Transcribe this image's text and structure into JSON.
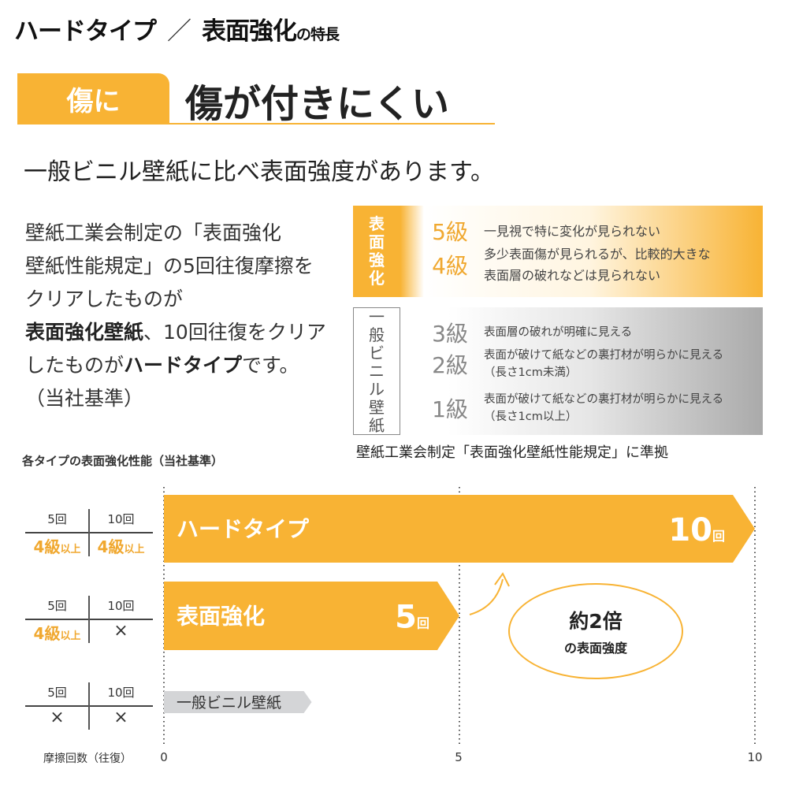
{
  "header": {
    "title_part1": "ハードタイプ",
    "separator": "／",
    "title_part2": "表面強化",
    "title_suffix": "の特長"
  },
  "feature": {
    "label": "傷に",
    "heading": "傷が付きにくい",
    "subtitle": "一般ビニル壁紙に比べ表面強度があります。"
  },
  "paragraph": {
    "lines": [
      "壁紙工業会制定の「表面強化",
      "壁紙性能規定」の5回往復摩擦を",
      "クリアしたものが"
    ],
    "bold1": "表面強化壁紙",
    "line4_rest": "、10回往復をクリア",
    "line5_pre": "したものが",
    "bold2": "ハードタイプ",
    "line5_post": "です。",
    "line6": "（当社基準）"
  },
  "grades": {
    "surface_label": "表面強化",
    "vinyl_label": "一般ビニル壁紙",
    "rows": [
      {
        "grade": "5級",
        "desc": [
          "一見視で特に変化が見られない"
        ]
      },
      {
        "grade": "4級",
        "desc": [
          "多少表面傷が見られるが、比較的大きな",
          "表面層の破れなどは見られない"
        ]
      },
      {
        "grade": "3級",
        "desc": [
          "表面層の破れが明確に見える"
        ]
      },
      {
        "grade": "2級",
        "desc": [
          "表面が破けて紙などの裏打材が明らかに見える",
          "（長さ1cm未満）"
        ]
      },
      {
        "grade": "1級",
        "desc": [
          "表面が破けて紙などの裏打材が明らかに見える",
          "（長さ1cm以上）"
        ]
      }
    ],
    "caption": "壁紙工業会制定「表面強化壁紙性能規定」に準拠"
  },
  "colors": {
    "accent": "#f8b334",
    "gray_bar": "#d4d5d7"
  },
  "chart_data": {
    "type": "bar",
    "orientation": "horizontal",
    "title": "各タイプの表面強化性能（当社基準）",
    "xlabel": "摩擦回数（往復）",
    "xlim": [
      0,
      10
    ],
    "xticks": [
      "0",
      "5",
      "10"
    ],
    "grid": "dotted vertical at 0, 5, 10",
    "categories": [
      "ハードタイプ",
      "表面強化",
      "一般ビニル壁紙"
    ],
    "values": [
      10,
      5,
      2.5
    ],
    "data_labels": [
      {
        "num": "10",
        "unit": "回"
      },
      {
        "num": "5",
        "unit": "回"
      },
      null
    ],
    "tables": [
      {
        "h5": "5回",
        "h10": "10回",
        "v5": "4級",
        "v5s": "以上",
        "v10": "4級",
        "v10s": "以上"
      },
      {
        "h5": "5回",
        "h10": "10回",
        "v5": "4級",
        "v5s": "以上",
        "v10": "×",
        "v10s": ""
      },
      {
        "h5": "5回",
        "h10": "10回",
        "v5": "×",
        "v5s": "",
        "v10": "×",
        "v10s": ""
      }
    ],
    "annotation": {
      "line1": "約2倍",
      "line2": "の表面強度"
    }
  }
}
